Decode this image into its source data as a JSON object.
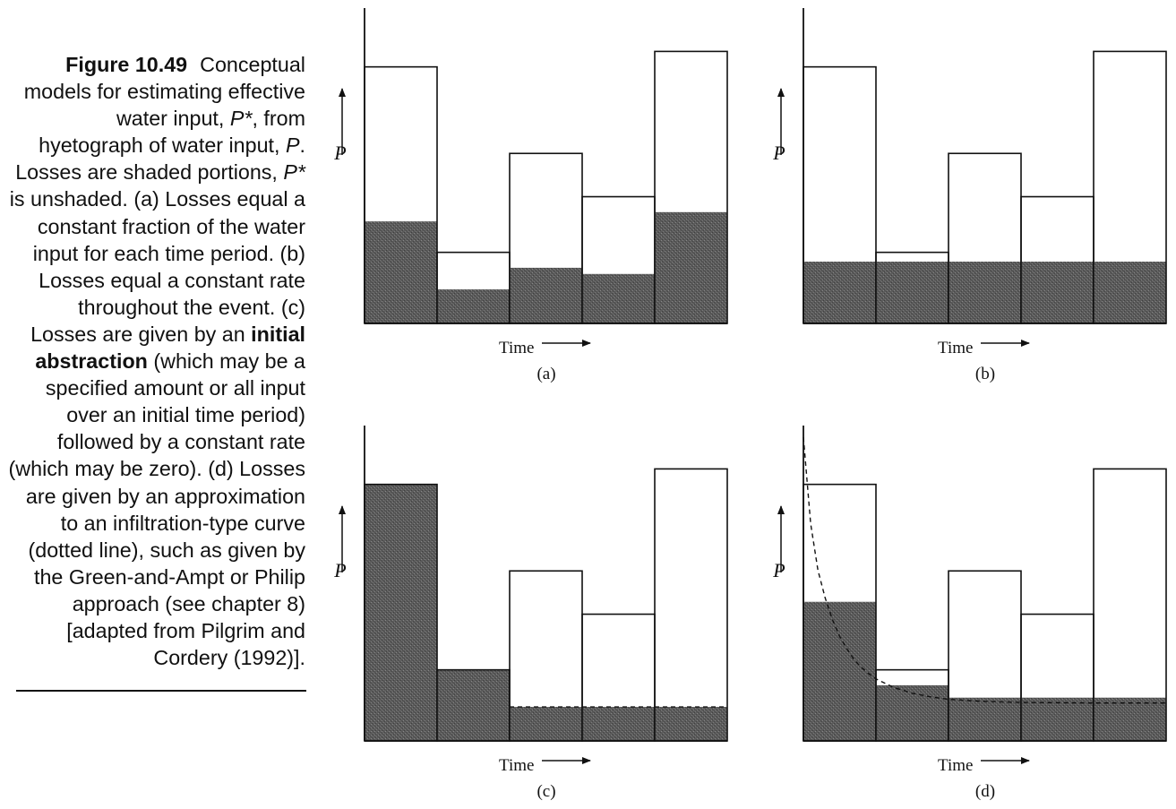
{
  "caption": {
    "label": "Figure 10.49",
    "parts": [
      {
        "text": "Conceptual models for estimating effective water input, ",
        "style": "normal"
      },
      {
        "text": "P*",
        "style": "italic"
      },
      {
        "text": ", from hyetograph of water input, ",
        "style": "normal"
      },
      {
        "text": "P",
        "style": "italic"
      },
      {
        "text": ". Losses are shaded portions, ",
        "style": "normal"
      },
      {
        "text": "P*",
        "style": "italic"
      },
      {
        "text": " is unshaded. (a) Losses equal a constant fraction of the water input for each time period. (b) Losses equal a constant rate throughout the event. (c) Losses are given by an ",
        "style": "normal"
      },
      {
        "text": "initial abstraction",
        "style": "bold"
      },
      {
        "text": " (which may be a specified amount or all input over an initial time period) followed by a constant rate (which may be zero). (d) Losses are given by an approximation to an infiltration-type curve (dotted line), such as given by the Green-and-Ampt or Philip approach (see chapter 8) [adapted from Pilgrim and Cordery (1992)].",
        "style": "normal"
      }
    ]
  },
  "chart_data": [
    {
      "type": "bar",
      "panel_label": "(a)",
      "ylabel": "P",
      "xlabel": "Time",
      "values": [
        0.83,
        0.23,
        0.55,
        0.41,
        0.88
      ],
      "losses": [
        0.33,
        0.11,
        0.18,
        0.16,
        0.36
      ]
    },
    {
      "type": "bar",
      "panel_label": "(b)",
      "ylabel": "P",
      "xlabel": "Time",
      "values": [
        0.83,
        0.23,
        0.55,
        0.41,
        0.88
      ],
      "losses": [
        0.2,
        0.2,
        0.2,
        0.2,
        0.2
      ]
    },
    {
      "type": "bar",
      "panel_label": "(c)",
      "ylabel": "P",
      "xlabel": "Time",
      "values": [
        0.83,
        0.23,
        0.55,
        0.41,
        0.88
      ],
      "losses": [
        0.83,
        0.23,
        0.11,
        0.11,
        0.11
      ],
      "loss_rate_line": 0.11
    },
    {
      "type": "bar",
      "panel_label": "(d)",
      "ylabel": "P",
      "xlabel": "Time",
      "values": [
        0.83,
        0.23,
        0.55,
        0.41,
        0.88
      ],
      "losses": [
        0.45,
        0.18,
        0.14,
        0.14,
        0.14
      ],
      "infiltration_curve": {
        "x": [
          0.0,
          0.1,
          0.2,
          0.3,
          0.4,
          0.5,
          0.6,
          0.7,
          0.8,
          0.9,
          1.0,
          1.25,
          1.5,
          1.75,
          2.0,
          2.5,
          3.0,
          4.0,
          5.0
        ],
        "y": [
          1.0,
          0.72,
          0.57,
          0.48,
          0.41,
          0.355,
          0.315,
          0.28,
          0.255,
          0.235,
          0.218,
          0.19,
          0.172,
          0.16,
          0.152,
          0.145,
          0.142,
          0.14,
          0.14
        ]
      }
    }
  ]
}
